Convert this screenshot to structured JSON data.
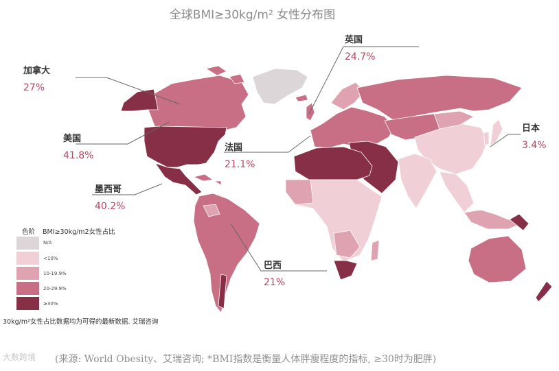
{
  "title": "全球BMI≥30kg/m² 女性分布图",
  "labels": {
    "canada": {
      "name": "加拿大",
      "value": "27%"
    },
    "usa": {
      "name": "美国",
      "value": "41.8%"
    },
    "mexico": {
      "name": "墨西哥",
      "value": "40.2%"
    },
    "uk": {
      "name": "英国",
      "value": "24.7%"
    },
    "france": {
      "name": "法国",
      "value": "21.1%"
    },
    "japan": {
      "name": "日本",
      "value": "3.4%"
    },
    "brazil": {
      "name": "巴西",
      "value": "21%"
    }
  },
  "legend": {
    "title": "色阶",
    "column_title": "BMI≥30kg/m2女性占比",
    "items": [
      {
        "label": "N/A",
        "color": "#dcd6d8"
      },
      {
        "label": "<10%",
        "color": "#f1cfd7"
      },
      {
        "label": "10-19.9%",
        "color": "#dfa2b1"
      },
      {
        "label": "20-29.9%",
        "color": "#c86f85"
      },
      {
        "label": "≥30%",
        "color": "#862f47"
      }
    ]
  },
  "note": "30kg/m²女性占比数据均为可得的最新数据. 艾瑞咨询",
  "source": "(来源: World Obesity、艾瑞咨询; *BMI指数是衡量人体胖瘦程度的指标, ≥30时为肥胖)",
  "watermark": "大数跨境"
}
